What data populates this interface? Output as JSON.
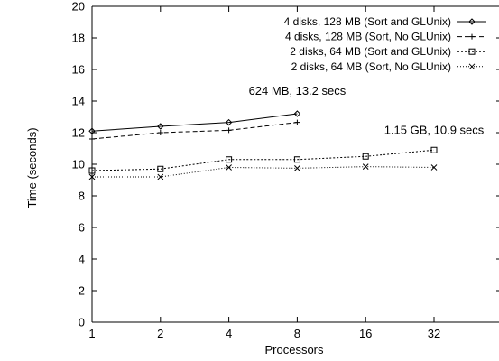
{
  "chart_data": {
    "type": "line",
    "title": "",
    "xlabel": "Processors",
    "ylabel": "Time (seconds)",
    "x_scale": "log2",
    "xlim": [
      1,
      64
    ],
    "ylim": [
      0,
      20
    ],
    "xticks": [
      1,
      2,
      4,
      8,
      16,
      32
    ],
    "xtick_labels": [
      "1",
      "2",
      "4",
      "8",
      "16",
      "32"
    ],
    "yticks": [
      0,
      2,
      4,
      6,
      8,
      10,
      12,
      14,
      16,
      18,
      20
    ],
    "ytick_labels": [
      "0",
      "2",
      "4",
      "6",
      "8",
      "10",
      "12",
      "14",
      "16",
      "18",
      "20"
    ],
    "grid": false,
    "legend_position": "top-right",
    "series": [
      {
        "name": "4 disks, 128 MB (Sort and GLUnix)",
        "x": [
          1,
          2,
          4,
          8
        ],
        "y": [
          12.1,
          12.4,
          12.65,
          13.2
        ],
        "marker": "diamond",
        "dash": "solid"
      },
      {
        "name": "4 disks, 128 MB (Sort, No GLUnix)",
        "x": [
          1,
          2,
          4,
          8
        ],
        "y": [
          11.6,
          12.0,
          12.15,
          12.65
        ],
        "marker": "plus",
        "dash": "dashed"
      },
      {
        "name": "2 disks, 64 MB (Sort and GLUnix)",
        "x": [
          1,
          2,
          4,
          8,
          16,
          32
        ],
        "y": [
          9.6,
          9.7,
          10.3,
          10.3,
          10.5,
          10.9
        ],
        "marker": "square",
        "dash": "dotted"
      },
      {
        "name": "2 disks, 64 MB (Sort, No GLUnix)",
        "x": [
          1,
          2,
          4,
          8,
          16,
          32
        ],
        "y": [
          9.2,
          9.2,
          9.8,
          9.75,
          9.85,
          9.8
        ],
        "marker": "cross",
        "dash": "fine-dotted"
      }
    ],
    "annotations": [
      {
        "text": "624 MB, 13.2 secs",
        "x": 8,
        "y": 13.2
      },
      {
        "text": "1.15 GB, 10.9 secs",
        "x": 32,
        "y": 10.9
      }
    ]
  }
}
